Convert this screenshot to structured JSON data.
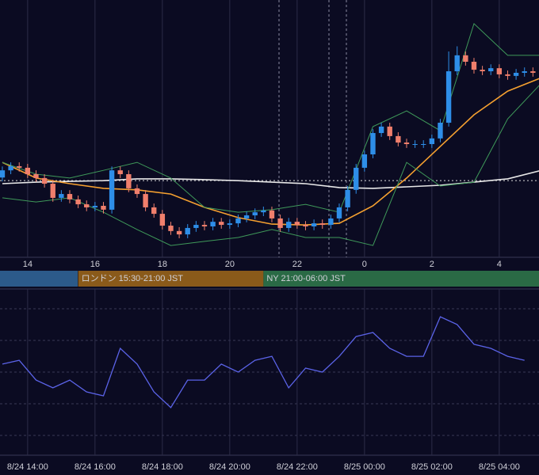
{
  "chart_data": [
    {
      "type": "candlestick",
      "xlim": [
        13.18,
        29.18
      ],
      "ylim": [
        0,
        100
      ],
      "xticks": [
        14,
        16,
        18,
        20,
        22,
        {
          "value": 24,
          "label": "0"
        },
        {
          "value": 26,
          "label": "2"
        },
        {
          "value": 28,
          "label": "4"
        }
      ],
      "up_color": "#2e8ee8",
      "down_color": "#f07f6c",
      "x": [
        13.25,
        13.5,
        13.75,
        14,
        14.25,
        14.5,
        14.75,
        15,
        15.25,
        15.5,
        15.75,
        16,
        16.25,
        16.5,
        16.75,
        17,
        17.25,
        17.5,
        17.75,
        18,
        18.25,
        18.5,
        18.75,
        19,
        19.25,
        19.5,
        19.75,
        20,
        20.25,
        20.5,
        20.75,
        21,
        21.25,
        21.5,
        21.75,
        22,
        22.25,
        22.5,
        22.75,
        23,
        23.25,
        23.5,
        23.75,
        24,
        24.25,
        24.5,
        24.75,
        25,
        25.25,
        25.5,
        25.75,
        26,
        26.25,
        26.5,
        26.75,
        27,
        27.25,
        27.5,
        27.75,
        28,
        28.25,
        28.5,
        28.75,
        29
      ],
      "open": [
        31.0,
        33.8,
        35.4,
        34.8,
        32.3,
        30.8,
        28.6,
        23.1,
        24.6,
        22.5,
        20.6,
        19.4,
        20.0,
        18.5,
        33.8,
        32.3,
        26.8,
        24.6,
        19.4,
        16.9,
        12.3,
        10.2,
        8.9,
        11.4,
        12.6,
        12.0,
        13.8,
        12.6,
        13.2,
        15.1,
        16.3,
        17.5,
        18.2,
        15.1,
        11.4,
        13.8,
        12.6,
        12.0,
        13.2,
        12.6,
        15.1,
        19.4,
        26.2,
        34.8,
        40.0,
        48.3,
        50.8,
        47.1,
        44.6,
        44.0,
        44.0,
        44.0,
        46.2,
        52.3,
        72.3,
        78.5,
        76.0,
        72.9,
        72.3,
        73.5,
        71.1,
        70.5,
        71.7,
        72.3
      ],
      "close": [
        33.8,
        35.4,
        34.8,
        32.3,
        30.8,
        28.6,
        23.1,
        24.6,
        22.5,
        20.6,
        19.4,
        20.0,
        18.5,
        33.8,
        32.3,
        26.8,
        24.6,
        19.4,
        16.9,
        12.3,
        10.2,
        8.9,
        11.4,
        12.6,
        12.0,
        13.8,
        12.6,
        13.2,
        15.1,
        16.3,
        17.5,
        18.2,
        15.1,
        11.4,
        13.8,
        12.6,
        12.0,
        13.2,
        12.6,
        15.1,
        19.4,
        26.2,
        34.8,
        40.0,
        48.3,
        50.8,
        47.1,
        44.6,
        44.0,
        44.0,
        44.0,
        46.2,
        52.3,
        72.3,
        78.5,
        76.0,
        72.9,
        72.3,
        73.5,
        71.1,
        70.5,
        71.7,
        72.3,
        71.7
      ],
      "high": [
        35.3,
        36.9,
        36.9,
        36.3,
        33.8,
        32.3,
        30.1,
        26.1,
        26.1,
        24.0,
        22.1,
        21.5,
        21.5,
        35.3,
        35.3,
        33.8,
        28.3,
        26.1,
        20.9,
        18.4,
        13.8,
        11.7,
        12.9,
        14.1,
        14.1,
        15.3,
        15.3,
        14.7,
        16.6,
        17.8,
        19.0,
        19.7,
        19.7,
        16.6,
        15.3,
        15.3,
        14.1,
        14.7,
        14.7,
        16.6,
        20.9,
        27.7,
        36.3,
        41.5,
        49.8,
        52.3,
        52.3,
        48.6,
        46.1,
        45.5,
        45.5,
        47.7,
        53.8,
        80.0,
        82.0,
        80.0,
        77.5,
        74.4,
        75.0,
        75.0,
        72.6,
        73.2,
        73.8,
        73.8
      ],
      "low": [
        29.5,
        32.3,
        33.3,
        30.8,
        29.3,
        27.1,
        21.6,
        21.6,
        21.0,
        19.1,
        17.9,
        17.9,
        17.0,
        17.0,
        30.8,
        25.3,
        23.1,
        17.9,
        15.4,
        10.8,
        8.7,
        7.4,
        7.4,
        9.9,
        10.5,
        10.5,
        11.1,
        11.1,
        11.7,
        13.6,
        14.8,
        16.0,
        13.6,
        9.9,
        9.9,
        11.1,
        10.5,
        10.5,
        11.1,
        11.1,
        13.6,
        17.9,
        24.7,
        33.3,
        38.5,
        46.8,
        45.6,
        43.1,
        42.5,
        42.5,
        42.5,
        42.5,
        44.7,
        50.8,
        70.8,
        74.5,
        71.4,
        70.8,
        70.8,
        69.6,
        69.0,
        69.0,
        70.2,
        70.2
      ],
      "ref_line": 29.8,
      "lines": [
        {
          "color": "#e8e8e8",
          "x": [
            13.25,
            14.25,
            15.25,
            16.25,
            17.25,
            18.25,
            19.25,
            20.25,
            21.25,
            22.25,
            23.25,
            24.25,
            25.25,
            26.25,
            27.25,
            28.25,
            29.25
          ],
          "values": [
            28.6,
            29.2,
            29.5,
            29.8,
            30.5,
            30.5,
            30.2,
            29.8,
            29.2,
            28.6,
            27.1,
            26.8,
            27.4,
            28.0,
            29.2,
            30.5,
            33.8
          ]
        },
        {
          "color": "#f5a030",
          "x": [
            13.25,
            14.25,
            15.25,
            16.25,
            17.25,
            18.25,
            19.25,
            20.25,
            21.25,
            22.25,
            23.25,
            24.25,
            25.25,
            26.25,
            27.25,
            28.25,
            29.25
          ],
          "values": [
            36.9,
            30.8,
            28.6,
            26.8,
            26.2,
            24.6,
            19.4,
            15.4,
            12.9,
            12.6,
            13.2,
            20.0,
            30.8,
            43.1,
            55.4,
            64.6,
            69.8
          ]
        },
        {
          "color": "#3f9a5a",
          "x": [
            13.25,
            14.25,
            15.25,
            16.25,
            17.25,
            18.25,
            19.25,
            20.25,
            21.25,
            22.25,
            23.25,
            24.25,
            25.25,
            26.25,
            27.25,
            28.25,
            29.25
          ],
          "values": [
            36.9,
            32.3,
            30.8,
            33.8,
            36.9,
            30.8,
            19.4,
            17.5,
            18.5,
            20.6,
            17.5,
            50.8,
            56.9,
            49.2,
            90.8,
            78.5,
            78.5
          ]
        },
        {
          "color": "#3f9a5a",
          "x": [
            13.25,
            14.25,
            15.25,
            16.25,
            17.25,
            18.25,
            19.25,
            20.25,
            21.25,
            22.25,
            23.25,
            24.25,
            25.25,
            26.25,
            27.25,
            28.25,
            29.25
          ],
          "values": [
            23.1,
            21.5,
            23.1,
            17.5,
            10.8,
            4.6,
            6.2,
            7.7,
            10.8,
            7.7,
            7.7,
            4.6,
            36.9,
            27.7,
            29.2,
            53.8,
            67.7
          ]
        }
      ],
      "sessions": [
        {
          "label": "ロンドン 15:30-21:00 JST",
          "start": 15.5,
          "end": 21,
          "color": "#8a5a1a"
        },
        {
          "label": "NY 21:00-06:00 JST",
          "start": 21,
          "end": 30,
          "color": "#2a6a45"
        }
      ]
    },
    {
      "type": "line",
      "xlim": [
        13.18,
        29.18
      ],
      "ylim": [
        0,
        100
      ],
      "xticks": [
        {
          "value": 14,
          "label": "8/24 14:00"
        },
        {
          "value": 16,
          "label": "8/24 16:00"
        },
        {
          "value": 18,
          "label": "8/24 18:00"
        },
        {
          "value": 20,
          "label": "8/24 20:00"
        },
        {
          "value": 22,
          "label": "8/24 22:00"
        },
        {
          "value": 24,
          "label": "8/25 00:00"
        },
        {
          "value": 26,
          "label": "8/25 02:00"
        },
        {
          "value": 28,
          "label": "8/25 04:00"
        }
      ],
      "color": "#5b63e8",
      "x": [
        13.25,
        13.75,
        14.25,
        14.75,
        15.25,
        15.75,
        16.25,
        16.75,
        17.25,
        17.75,
        18.25,
        18.75,
        19.25,
        19.75,
        20.25,
        20.75,
        21.25,
        21.75,
        22.25,
        22.75,
        23.25,
        23.75,
        24.25,
        24.75,
        25.25,
        25.75,
        26.25,
        26.75,
        27.25,
        27.75,
        28.25,
        28.75
      ],
      "values": [
        54.8,
        57.1,
        45.2,
        40.5,
        45.2,
        38.1,
        35.7,
        64.3,
        54.8,
        38.1,
        28.6,
        45.2,
        45.2,
        54.8,
        50.0,
        57.1,
        59.5,
        40.5,
        52.4,
        50.0,
        59.5,
        71.4,
        73.8,
        64.3,
        59.5,
        59.5,
        83.3,
        78.6,
        66.7,
        64.3,
        59.5,
        57.1
      ]
    }
  ]
}
